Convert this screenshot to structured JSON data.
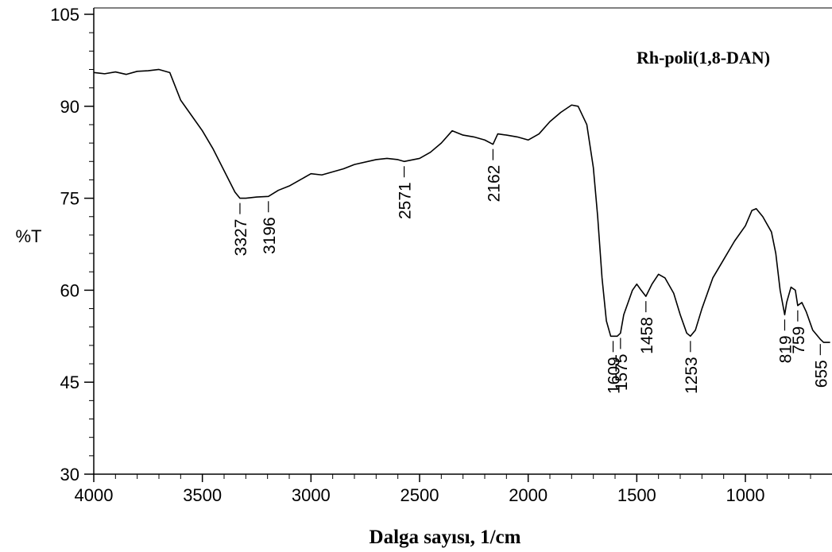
{
  "chart_data": {
    "type": "line",
    "title": "Rh-poli(1,8-DAN)",
    "x_label": "Dalga sayısı, 1/cm",
    "y_label": "%T",
    "xlim": [
      4000,
      600
    ],
    "ylim": [
      30,
      105
    ],
    "xticks": [
      4000,
      3500,
      3000,
      2500,
      2000,
      1500,
      1000
    ],
    "yticks": [
      30,
      45,
      60,
      75,
      90,
      105
    ],
    "xminorticks": [
      3900,
      3800,
      3700,
      3600,
      3400,
      3300,
      3200,
      3100,
      2900,
      2800,
      2700,
      2600,
      2400,
      2300,
      2200,
      2100,
      1900,
      1800,
      1700,
      1600,
      1400,
      1300,
      1200,
      1100,
      900,
      800,
      700
    ],
    "yminorticks": [
      33,
      36,
      39,
      42,
      48,
      51,
      54,
      57,
      63,
      66,
      69,
      72,
      78,
      81,
      84,
      87,
      93,
      96,
      99,
      102
    ],
    "series": [
      {
        "color": "#000000",
        "x": [
          4000,
          3950,
          3900,
          3850,
          3800,
          3750,
          3700,
          3650,
          3600,
          3550,
          3500,
          3450,
          3400,
          3350,
          3327,
          3300,
          3250,
          3196,
          3150,
          3100,
          3050,
          3000,
          2950,
          2900,
          2850,
          2800,
          2700,
          2650,
          2600,
          2571,
          2500,
          2450,
          2400,
          2350,
          2300,
          2250,
          2200,
          2162,
          2140,
          2100,
          2050,
          2000,
          1950,
          1900,
          1850,
          1800,
          1770,
          1730,
          1700,
          1680,
          1660,
          1640,
          1620,
          1609,
          1590,
          1575,
          1560,
          1540,
          1520,
          1500,
          1480,
          1458,
          1430,
          1400,
          1370,
          1330,
          1300,
          1270,
          1253,
          1230,
          1200,
          1150,
          1100,
          1050,
          1000,
          970,
          950,
          920,
          880,
          860,
          840,
          819,
          810,
          790,
          770,
          759,
          740,
          720,
          690,
          655,
          640,
          610
        ],
        "values": [
          95.5,
          95.3,
          95.6,
          95.2,
          95.7,
          95.8,
          96,
          95.5,
          91,
          88.5,
          86,
          83,
          79.5,
          76,
          75,
          75,
          75.2,
          75.3,
          76.3,
          77,
          78,
          79,
          78.8,
          79.3,
          79.8,
          80.5,
          81.3,
          81.5,
          81.3,
          81,
          81.5,
          82.5,
          84,
          86,
          85.3,
          85,
          84.5,
          83.8,
          85.5,
          85.3,
          85,
          84.5,
          85.5,
          87.5,
          89,
          90.2,
          90,
          87,
          80,
          72,
          62,
          55,
          52.5,
          52.5,
          52.5,
          53,
          56,
          58,
          60,
          61,
          60,
          59,
          61,
          62.6,
          62,
          59.5,
          56,
          53,
          52.5,
          53.5,
          57,
          62,
          65,
          68,
          70.5,
          73,
          73.3,
          72,
          69.5,
          66,
          60,
          56,
          58,
          60.5,
          60,
          57.5,
          58,
          56.5,
          53.5,
          52,
          51.5,
          51.5
        ]
      }
    ],
    "peaks": [
      3327,
      3196,
      2571,
      2162,
      1609,
      1575,
      1458,
      1253,
      819,
      759,
      655
    ]
  }
}
